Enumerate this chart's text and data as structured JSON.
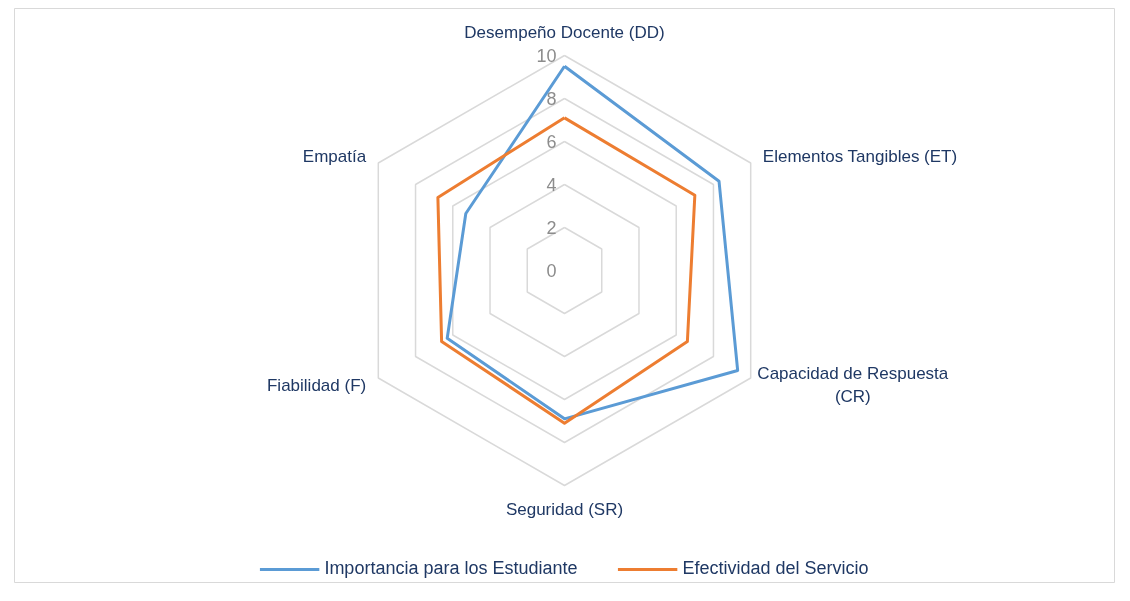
{
  "chart_data": {
    "type": "radar",
    "categories": [
      "Desempeño Docente (DD)",
      "Elementos Tangibles (ET)",
      "Capacidad de Respuesta (CR)",
      "Seguridad (SR)",
      "Fiabilidad (F)",
      "Empatía"
    ],
    "series": [
      {
        "name": "Importancia para los Estudiante",
        "color": "#5b9bd5",
        "values": [
          9.5,
          8.3,
          9.3,
          6.9,
          6.3,
          5.3
        ]
      },
      {
        "name": "Efectividad del Servicio",
        "color": "#ed7d31",
        "values": [
          7.1,
          7.0,
          6.6,
          7.1,
          6.6,
          6.8
        ]
      }
    ],
    "ylim": [
      0,
      10
    ],
    "yticks": [
      0,
      2,
      4,
      6,
      8,
      10
    ],
    "grid": true,
    "legend": "bottom",
    "marker": "none",
    "line_style": "solid"
  }
}
